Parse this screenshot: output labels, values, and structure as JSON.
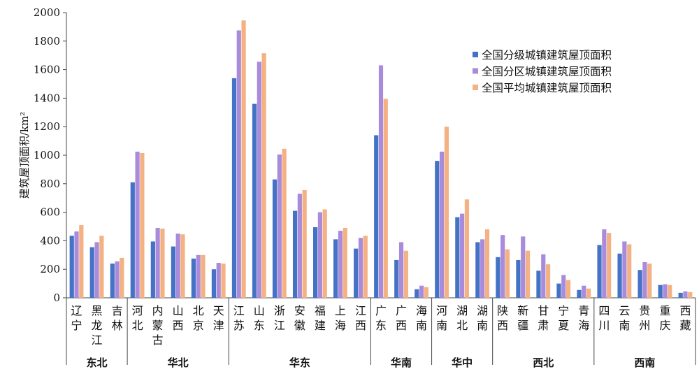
{
  "chart_data": {
    "type": "bar",
    "ylabel": "建筑屋顶面积/km²",
    "ylim": [
      0,
      2000
    ],
    "yticks": [
      0,
      200,
      400,
      600,
      800,
      1000,
      1200,
      1400,
      1600,
      1800,
      2000
    ],
    "grid": false,
    "legend_position": "top-right",
    "categories": [
      "辽宁",
      "黑龙江",
      "吉林",
      "河北",
      "内蒙古",
      "山西",
      "北京",
      "天津",
      "江苏",
      "山东",
      "浙江",
      "安徽",
      "福建",
      "上海",
      "江西",
      "广东",
      "广西",
      "海南",
      "河南",
      "湖北",
      "湖南",
      "陕西",
      "新疆",
      "甘肃",
      "宁夏",
      "青海",
      "四川",
      "云南",
      "贵州",
      "重庆",
      "西藏"
    ],
    "groups": [
      {
        "name": "东北",
        "count": 3
      },
      {
        "name": "华北",
        "count": 5
      },
      {
        "name": "华东",
        "count": 7
      },
      {
        "name": "华南",
        "count": 3
      },
      {
        "name": "华中",
        "count": 3
      },
      {
        "name": "西北",
        "count": 5
      },
      {
        "name": "西南",
        "count": 5
      }
    ],
    "series": [
      {
        "name": "全国分级城镇建筑屋顶面积",
        "color": "#4472C4",
        "values": [
          435,
          355,
          240,
          810,
          395,
          360,
          275,
          200,
          1540,
          1360,
          830,
          610,
          495,
          410,
          345,
          1140,
          265,
          60,
          960,
          565,
          390,
          285,
          265,
          190,
          100,
          55,
          370,
          310,
          195,
          90,
          35
        ]
      },
      {
        "name": "全国分区城镇建筑屋顶面积",
        "color": "#A88BDB",
        "values": [
          465,
          390,
          255,
          1025,
          490,
          450,
          300,
          245,
          1875,
          1655,
          1005,
          730,
          600,
          470,
          420,
          1630,
          390,
          85,
          1025,
          590,
          410,
          440,
          430,
          305,
          160,
          85,
          480,
          395,
          250,
          95,
          45
        ]
      },
      {
        "name": "全国平均城镇建筑屋顶面积",
        "color": "#F4B183",
        "values": [
          510,
          435,
          280,
          1015,
          485,
          445,
          300,
          240,
          1945,
          1715,
          1045,
          755,
          620,
          490,
          435,
          1395,
          330,
          75,
          1200,
          690,
          480,
          340,
          330,
          235,
          125,
          65,
          455,
          375,
          240,
          90,
          40
        ]
      }
    ]
  }
}
